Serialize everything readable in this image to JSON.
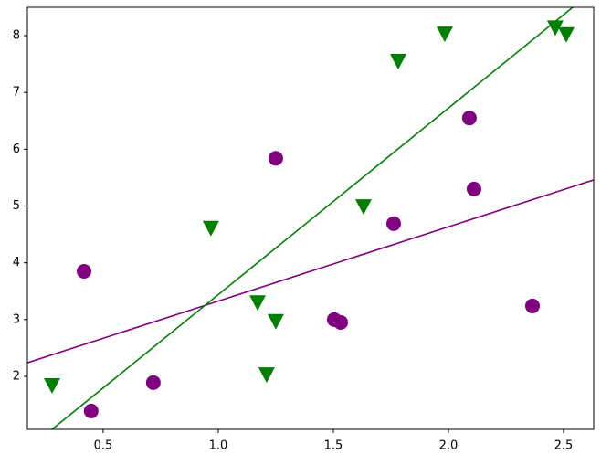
{
  "chart_data": {
    "type": "scatter",
    "xlim": [
      0.171,
      2.631
    ],
    "ylim": [
      1.067,
      8.499
    ],
    "xticks": [
      0.5,
      {
        "value": 1,
        "label": "1.0"
      },
      1.5,
      {
        "value": 2,
        "label": "2.0"
      },
      2.5
    ],
    "yticks": [
      2,
      3,
      4,
      5,
      6,
      7,
      8
    ],
    "series": [
      {
        "color": "#800080",
        "marker": "circle",
        "x": [
          0.417,
          0.448,
          0.718,
          1.25,
          1.504,
          1.532,
          1.762,
          2.091,
          2.111,
          2.365
        ],
        "values": [
          3.85,
          1.39,
          1.89,
          5.84,
          3.0,
          2.95,
          4.69,
          6.55,
          5.3,
          3.24
        ]
      },
      {
        "color": "#008000",
        "marker": "triangle-down",
        "x": [
          0.278,
          0.968,
          1.171,
          1.25,
          1.21,
          1.631,
          1.782,
          1.984,
          2.464,
          2.512
        ],
        "values": [
          1.84,
          4.61,
          3.3,
          2.97,
          2.03,
          4.99,
          7.55,
          8.03,
          8.14,
          8.02
        ]
      }
    ],
    "fit_lines": [
      {
        "color": "#800080",
        "x": [
          0.171,
          2.631
        ],
        "values": [
          2.24,
          5.46
        ]
      },
      {
        "color": "#008000",
        "x": [
          0.278,
          2.54
        ],
        "values": [
          1.067,
          8.499
        ]
      }
    ]
  }
}
